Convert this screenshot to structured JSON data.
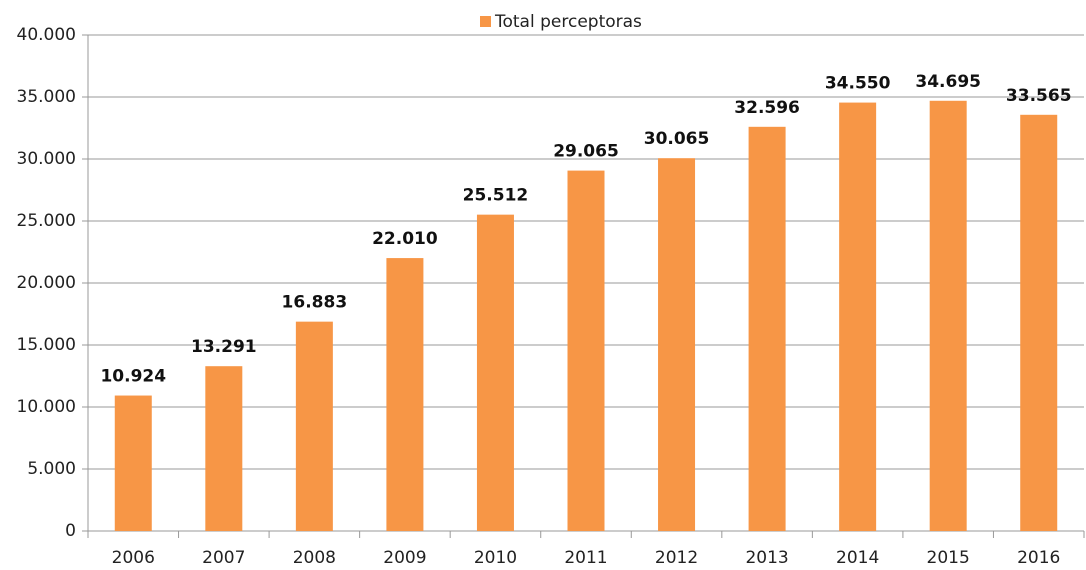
{
  "chart_data": {
    "type": "bar",
    "categories": [
      "2006",
      "2007",
      "2008",
      "2009",
      "2010",
      "2011",
      "2012",
      "2013",
      "2014",
      "2015",
      "2016"
    ],
    "series": [
      {
        "name": "Total perceptoras",
        "color": "#f79646",
        "values": [
          10924,
          13291,
          16883,
          22010,
          25512,
          29065,
          30065,
          32596,
          34550,
          34695,
          33565
        ],
        "value_labels": [
          "10.924",
          "13.291",
          "16.883",
          "22.010",
          "25.512",
          "29.065",
          "30.065",
          "32.596",
          "34.550",
          "34.695",
          "33.565"
        ]
      }
    ],
    "ylim": [
      0,
      40000
    ],
    "yticks": [
      0,
      {
        "value": 5000,
        "label": "5.000"
      },
      {
        "value": 10000,
        "label": "10.000"
      },
      {
        "value": 15000,
        "label": "15.000"
      },
      {
        "value": 20000,
        "label": "20.000"
      },
      {
        "value": 25000,
        "label": "25.000"
      },
      {
        "value": 30000,
        "label": "30.000"
      },
      {
        "value": 35000,
        "label": "35.000"
      },
      {
        "value": 40000,
        "label": "40.000"
      }
    ],
    "grid": true,
    "legend": "top"
  }
}
